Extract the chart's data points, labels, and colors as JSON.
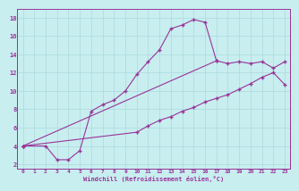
{
  "bg_color": "#c8eef0",
  "line_color": "#993399",
  "grid_color": "#b0dde0",
  "xlabel": "Windchill (Refroidissement éolien,°C)",
  "xlim": [
    -0.5,
    23.5
  ],
  "ylim": [
    1.5,
    19
  ],
  "xticks": [
    0,
    1,
    2,
    3,
    4,
    5,
    6,
    7,
    8,
    9,
    10,
    11,
    12,
    13,
    14,
    15,
    16,
    17,
    18,
    19,
    20,
    21,
    22,
    23
  ],
  "yticks": [
    2,
    4,
    6,
    8,
    10,
    12,
    14,
    16,
    18
  ],
  "line1_x": [
    0,
    2,
    3,
    4,
    5,
    6,
    7,
    8,
    9,
    10,
    11,
    12,
    13,
    14,
    15,
    16,
    17
  ],
  "line1_y": [
    4.0,
    4.0,
    2.5,
    2.5,
    3.5,
    7.8,
    8.5,
    9.0,
    10.0,
    11.8,
    13.2,
    14.5,
    16.8,
    17.2,
    17.8,
    17.5,
    13.3
  ],
  "line2_x": [
    0,
    17,
    18,
    19,
    20,
    21,
    22,
    23
  ],
  "line2_y": [
    4.0,
    13.3,
    13.0,
    13.2,
    13.0,
    13.2,
    12.5,
    13.2
  ],
  "line3_x": [
    0,
    10,
    11,
    12,
    13,
    14,
    15,
    16,
    17,
    18,
    19,
    20,
    21,
    22,
    23
  ],
  "line3_y": [
    4.0,
    5.5,
    6.2,
    6.8,
    7.2,
    7.8,
    8.2,
    8.8,
    9.2,
    9.6,
    10.2,
    10.8,
    11.5,
    12.0,
    10.7
  ]
}
